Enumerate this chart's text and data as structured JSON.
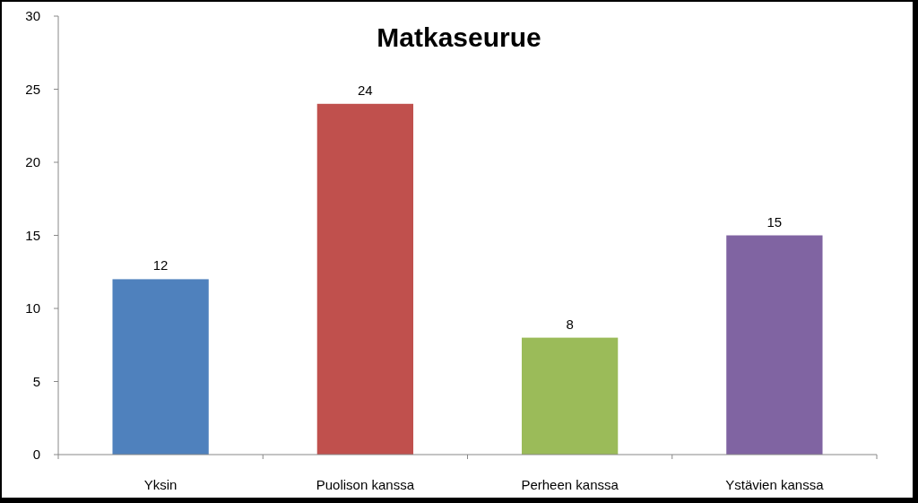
{
  "chart_data": {
    "type": "bar",
    "title": "Matkaseurue",
    "categories": [
      "Yksin",
      "Puolison kanssa",
      "Perheen kanssa",
      "Ystävien kanssa"
    ],
    "values": [
      12,
      24,
      8,
      15
    ],
    "colors": [
      "#4f81bd",
      "#c0504d",
      "#9bbb59",
      "#8064a2"
    ],
    "ylim": [
      0,
      30
    ],
    "yticks": [
      0,
      5,
      10,
      15,
      20,
      25,
      30
    ],
    "data_labels": true
  }
}
